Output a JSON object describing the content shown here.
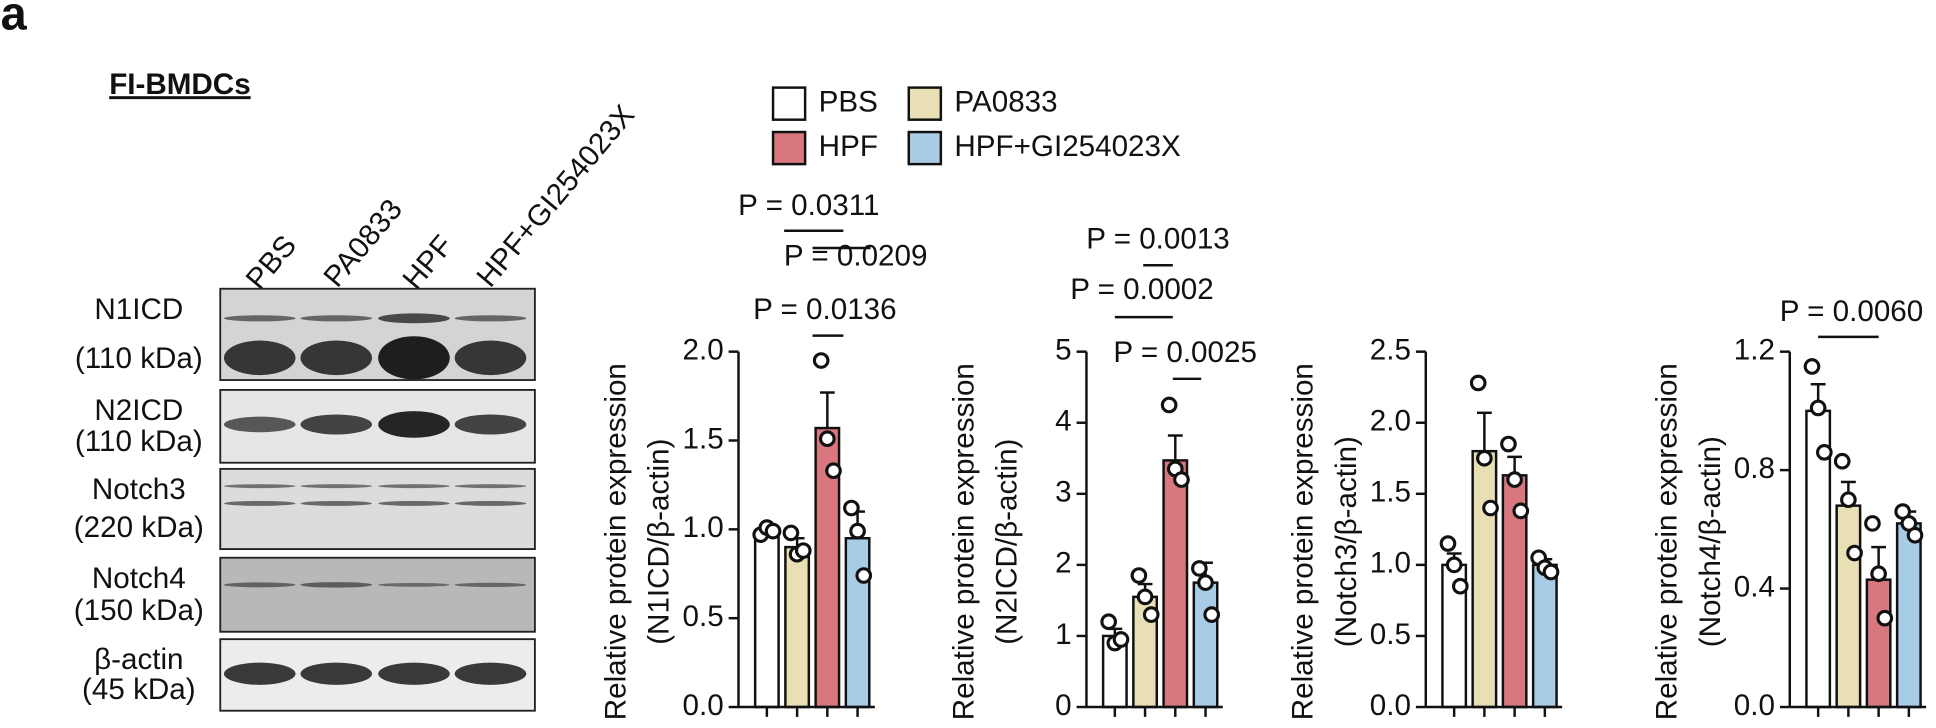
{
  "panel_label": "a",
  "blot": {
    "title": "FI-BMDCs",
    "lanes": [
      "PBS",
      "PA0833",
      "HPF",
      "HPF+GI254023X"
    ],
    "rows": [
      {
        "name": "N1ICD",
        "size": "(110 kDa)"
      },
      {
        "name": "N2ICD",
        "size": "(110 kDa)"
      },
      {
        "name": "Notch3",
        "size": "(220 kDa)"
      },
      {
        "name": "Notch4",
        "size": "(150 kDa)"
      },
      {
        "name": "β-actin",
        "size": "(45 kDa)"
      }
    ]
  },
  "chart_data": [
    {
      "type": "bar",
      "ylabel": [
        "Relative protein expression",
        "(N1ICD/β-actin)"
      ],
      "categories": [
        "PBS",
        "PA0833",
        "HPF",
        "HPF+GI254023X"
      ],
      "colors": [
        "#ffffff",
        "#e9dfb5",
        "#d9777f",
        "#a9cce6"
      ],
      "values": [
        0.99,
        0.9,
        1.57,
        0.95
      ],
      "errors": [
        0.02,
        0.05,
        0.2,
        0.15
      ],
      "points": [
        [
          0.97,
          1.01,
          0.99
        ],
        [
          0.98,
          0.86,
          0.88
        ],
        [
          1.95,
          1.51,
          1.33
        ],
        [
          1.12,
          0.99,
          0.74
        ]
      ],
      "ylim": [
        0,
        2
      ],
      "yticks": [
        {
          "value": 0,
          "label": "0.0"
        },
        {
          "value": 0.5,
          "label": "0.5"
        },
        {
          "value": 1,
          "label": "1.0"
        },
        {
          "value": 1.5,
          "label": "1.5"
        },
        {
          "value": 2,
          "label": "2.0"
        }
      ],
      "annotations": [
        "P = 0.0311",
        "P = 0.0209",
        "P = 0.0136"
      ]
    },
    {
      "type": "bar",
      "ylabel": [
        "Relative protein expression",
        "(N2ICD/β-actin)"
      ],
      "categories": [
        "PBS",
        "PA0833",
        "HPF",
        "HPF+GI254023X"
      ],
      "colors": [
        "#ffffff",
        "#e9dfb5",
        "#d9777f",
        "#a9cce6"
      ],
      "values": [
        1.0,
        1.55,
        3.47,
        1.75
      ],
      "errors": [
        0.1,
        0.18,
        0.35,
        0.28
      ],
      "points": [
        [
          1.2,
          0.9,
          0.95
        ],
        [
          1.85,
          1.55,
          1.3
        ],
        [
          4.25,
          3.35,
          3.2
        ],
        [
          1.95,
          1.75,
          1.3
        ]
      ],
      "ylim": [
        0,
        5
      ],
      "yticks": [
        0,
        1,
        2,
        3,
        4,
        5
      ],
      "annotations": [
        "P = 0.0013",
        "P = 0.0002",
        "P = 0.0025"
      ]
    },
    {
      "type": "bar",
      "ylabel": [
        "Relative protein expression",
        "(Notch3/β-actin)"
      ],
      "categories": [
        "PBS",
        "PA0833",
        "HPF",
        "HPF+GI254023X"
      ],
      "colors": [
        "#ffffff",
        "#e9dfb5",
        "#d9777f",
        "#a9cce6"
      ],
      "values": [
        1.0,
        1.8,
        1.63,
        1.0
      ],
      "errors": [
        0.08,
        0.27,
        0.13,
        0.04
      ],
      "points": [
        [
          1.15,
          1.0,
          0.85
        ],
        [
          2.28,
          1.75,
          1.4
        ],
        [
          1.85,
          1.6,
          1.38
        ],
        [
          1.05,
          0.98,
          0.95
        ]
      ],
      "ylim": [
        0,
        2.5
      ],
      "yticks": [
        {
          "value": 0,
          "label": "0.0"
        },
        {
          "value": 0.5,
          "label": "0.5"
        },
        {
          "value": 1,
          "label": "1.0"
        },
        {
          "value": 1.5,
          "label": "1.5"
        },
        {
          "value": 2,
          "label": "2.0"
        },
        {
          "value": 2.5,
          "label": "2.5"
        }
      ],
      "annotations": []
    },
    {
      "type": "bar",
      "ylabel": [
        "Relative protein expression",
        "(Notch4/β-actin)"
      ],
      "categories": [
        "PBS",
        "PA0833",
        "HPF",
        "HPF+GI254023X"
      ],
      "colors": [
        "#ffffff",
        "#e9dfb5",
        "#d9777f",
        "#a9cce6"
      ],
      "values": [
        1.0,
        0.68,
        0.43,
        0.62
      ],
      "errors": [
        0.09,
        0.08,
        0.11,
        0.04
      ],
      "points": [
        [
          1.15,
          1.01,
          0.86
        ],
        [
          0.83,
          0.7,
          0.52
        ],
        [
          0.62,
          0.45,
          0.3
        ],
        [
          0.66,
          0.62,
          0.58
        ]
      ],
      "ylim": [
        0,
        1.2
      ],
      "yticks": [
        {
          "value": 0,
          "label": "0.0"
        },
        {
          "value": 0.4,
          "label": "0.4"
        },
        {
          "value": 0.8,
          "label": "0.8"
        },
        {
          "value": 1.2,
          "label": "1.2"
        }
      ],
      "annotations": [
        "P = 0.0060"
      ]
    }
  ]
}
